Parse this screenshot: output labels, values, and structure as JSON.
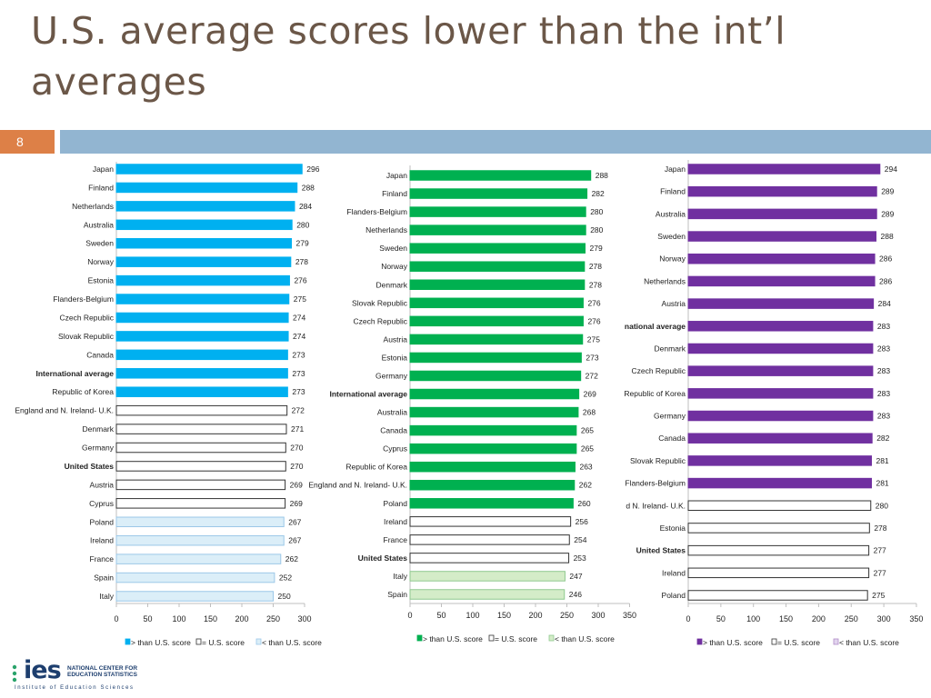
{
  "slide": {
    "title": "U.S. average scores lower than the int’l averages",
    "number": "8"
  },
  "logo": {
    "mark": "ies",
    "line1": "NATIONAL CENTER FOR",
    "line2": "EDUCATION STATISTICS",
    "full_name": "Institute of Education Sciences"
  },
  "colors": {
    "title": "#6b5748",
    "accent_orange": "#dd8047",
    "band_blue": "#92b5d1"
  },
  "chart_data": [
    {
      "type": "bar",
      "orientation": "horizontal",
      "categories": [
        "Japan",
        "Finland",
        "Netherlands",
        "Australia",
        "Sweden",
        "Norway",
        "Estonia",
        "Flanders-Belgium",
        "Czech Republic",
        "Slovak Republic",
        "Canada",
        "International average",
        "Republic of Korea",
        "England and N. Ireland- U.K.",
        "Denmark",
        "Germany",
        "United States",
        "Austria",
        "Cyprus",
        "Poland",
        "Ireland",
        "France",
        "Spain",
        "Italy"
      ],
      "values": [
        296,
        288,
        284,
        280,
        279,
        278,
        276,
        275,
        274,
        274,
        273,
        273,
        273,
        272,
        271,
        270,
        270,
        269,
        269,
        267,
        267,
        262,
        252,
        250
      ],
      "status": [
        "gt",
        "gt",
        "gt",
        "gt",
        "gt",
        "gt",
        "gt",
        "gt",
        "gt",
        "gt",
        "gt",
        "gt",
        "gt",
        "eq",
        "eq",
        "eq",
        "eq",
        "eq",
        "eq",
        "lt",
        "lt",
        "lt",
        "lt",
        "lt"
      ],
      "bold_labels": [
        "International average",
        "United States"
      ],
      "xlim": [
        0,
        300
      ],
      "xticks": [
        0,
        50,
        100,
        150,
        200,
        250,
        300
      ],
      "colors": {
        "gt": "#00b0f0",
        "eq": "#ffffff",
        "lt": "#dbeef8",
        "lt_border": "#9cc8e8"
      },
      "legend": [
        "> than U.S. score",
        "= U.S. score",
        "< than U.S. score"
      ]
    },
    {
      "type": "bar",
      "orientation": "horizontal",
      "categories": [
        "Japan",
        "Finland",
        "Flanders-Belgium",
        "Netherlands",
        "Sweden",
        "Norway",
        "Denmark",
        "Slovak Republic",
        "Czech Republic",
        "Austria",
        "Estonia",
        "Germany",
        "International average",
        "Australia",
        "Canada",
        "Cyprus",
        "Republic of Korea",
        "England and N. Ireland- U.K.",
        "Poland",
        "Ireland",
        "France",
        "United States",
        "Italy",
        "Spain"
      ],
      "values": [
        288,
        282,
        280,
        280,
        279,
        278,
        278,
        276,
        276,
        275,
        273,
        272,
        269,
        268,
        265,
        265,
        263,
        262,
        260,
        256,
        254,
        253,
        247,
        246
      ],
      "status": [
        "gt",
        "gt",
        "gt",
        "gt",
        "gt",
        "gt",
        "gt",
        "gt",
        "gt",
        "gt",
        "gt",
        "gt",
        "gt",
        "gt",
        "gt",
        "gt",
        "gt",
        "gt",
        "gt",
        "eq",
        "eq",
        "eq",
        "lt",
        "lt"
      ],
      "bold_labels": [
        "International average",
        "United States"
      ],
      "xlim": [
        0,
        350
      ],
      "xticks": [
        0,
        50,
        100,
        150,
        200,
        250,
        300,
        350
      ],
      "colors": {
        "gt": "#00b050",
        "eq": "#ffffff",
        "lt": "#d4ecc8",
        "lt_border": "#8fc98f"
      },
      "legend": [
        "> than U.S. score",
        "= U.S. score",
        "< than U.S. score"
      ]
    },
    {
      "type": "bar",
      "orientation": "horizontal",
      "categories": [
        "Japan",
        "Finland",
        "Australia",
        "Sweden",
        "Norway",
        "Netherlands",
        "Austria",
        "national average",
        "Denmark",
        "Czech Republic",
        "Republic of Korea",
        "Germany",
        "Canada",
        "Slovak Republic",
        "Flanders-Belgium",
        "d N. Ireland- U.K.",
        "Estonia",
        "United States",
        "Ireland",
        "Poland"
      ],
      "display_categories": [
        "Japan",
        "Finland",
        "Australia",
        "Sweden",
        "Norway",
        "Netherlands",
        "Austria",
        "national average",
        "Denmark",
        "Czech Republic",
        "Republic of Korea",
        "Germany",
        "Canada",
        "Slovak Republic",
        "Flanders-Belgium",
        "d N. Ireland- U.K.",
        "Estonia",
        "United States",
        "Ireland",
        "Poland"
      ],
      "values": [
        294,
        289,
        289,
        288,
        286,
        286,
        284,
        283,
        283,
        283,
        283,
        283,
        282,
        281,
        281,
        280,
        278,
        277,
        277,
        275
      ],
      "status": [
        "gt",
        "gt",
        "gt",
        "gt",
        "gt",
        "gt",
        "gt",
        "gt",
        "gt",
        "gt",
        "gt",
        "gt",
        "gt",
        "gt",
        "gt",
        "eq",
        "eq",
        "eq",
        "eq",
        "eq"
      ],
      "bold_labels": [
        "national average",
        "United States"
      ],
      "xlim": [
        0,
        350
      ],
      "xticks": [
        0,
        50,
        100,
        150,
        200,
        250,
        300,
        350
      ],
      "colors": {
        "gt": "#7030a0",
        "eq": "#ffffff",
        "lt": "#e2d4ee",
        "lt_border": "#b08cc8"
      },
      "legend": [
        "> than U.S. score",
        "= U.S. score",
        "< than U.S. score"
      ]
    }
  ]
}
